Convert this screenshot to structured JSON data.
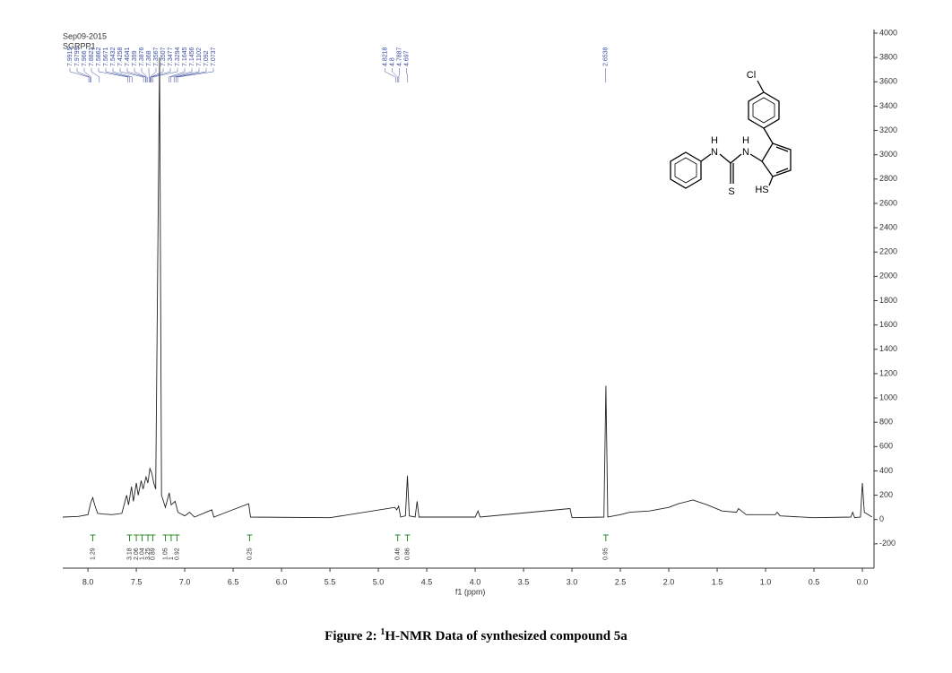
{
  "chart_data": {
    "type": "line",
    "run_date": "Sep09-2015",
    "sample_id": "SGRPP1",
    "caption_prefix": "Figure 2: ",
    "caption_sup": "1",
    "caption_rest": "H-NMR Data of synthesized compound 5a",
    "xlabel": "f1 (ppm)",
    "xlim": [
      8.26,
      -0.12
    ],
    "ylim": [
      -400,
      4000
    ],
    "xticks": [
      {
        "value": 8,
        "label": "8.0"
      },
      7.5,
      {
        "value": 7,
        "label": "7.0"
      },
      6.5,
      {
        "value": 6,
        "label": "6.0"
      },
      5.5,
      {
        "value": 5,
        "label": "5.0"
      },
      4.5,
      {
        "value": 4,
        "label": "4.0"
      },
      3.5,
      {
        "value": 3,
        "label": "3.0"
      },
      2.5,
      {
        "value": 2,
        "label": "2.0"
      },
      1.5,
      {
        "value": 1,
        "label": "1.0"
      },
      0.5,
      {
        "value": 0,
        "label": "0.0"
      }
    ],
    "yticks": [
      4000,
      3800,
      3600,
      3400,
      3200,
      3000,
      2800,
      2600,
      2400,
      2200,
      2000,
      1800,
      1600,
      1400,
      1200,
      1000,
      800,
      600,
      400,
      200,
      0,
      -200
    ],
    "color": "#222222",
    "x": [
      8.26,
      8.1,
      8.0,
      7.97,
      7.95,
      7.93,
      7.9,
      7.85,
      7.75,
      7.65,
      7.6,
      7.58,
      7.55,
      7.53,
      7.5,
      7.48,
      7.45,
      7.43,
      7.4,
      7.38,
      7.36,
      7.34,
      7.32,
      7.3,
      7.26,
      7.24,
      7.2,
      7.16,
      7.14,
      7.1,
      7.07,
      7.0,
      6.95,
      6.9,
      6.72,
      6.7,
      6.34,
      6.32,
      5.5,
      4.83,
      4.81,
      4.79,
      4.77,
      4.72,
      4.7,
      4.68,
      4.62,
      4.6,
      4.58,
      4.0,
      3.97,
      3.95,
      3.02,
      3.0,
      2.67,
      2.65,
      2.63,
      2.5,
      2.4,
      2.2,
      2.0,
      1.9,
      1.75,
      1.6,
      1.45,
      1.3,
      1.28,
      1.2,
      0.9,
      0.88,
      0.85,
      0.5,
      0.12,
      0.1,
      0.08,
      0.02,
      0.0,
      -0.02,
      -0.1
    ],
    "values": [
      20,
      25,
      40,
      140,
      180,
      120,
      50,
      45,
      40,
      50,
      200,
      120,
      270,
      150,
      300,
      200,
      320,
      250,
      350,
      300,
      420,
      380,
      300,
      250,
      3800,
      200,
      100,
      220,
      120,
      150,
      60,
      30,
      60,
      20,
      80,
      20,
      130,
      20,
      15,
      100,
      80,
      110,
      20,
      30,
      360,
      30,
      20,
      150,
      20,
      20,
      70,
      20,
      90,
      15,
      20,
      1100,
      20,
      40,
      60,
      70,
      100,
      130,
      160,
      120,
      70,
      60,
      90,
      40,
      40,
      60,
      30,
      15,
      20,
      60,
      15,
      20,
      300,
      60,
      20
    ],
    "peak_labels": [
      7.9915,
      7.9799,
      7.966,
      7.8823,
      7.5862,
      7.5671,
      7.5432,
      7.4258,
      7.4041,
      7.399,
      7.3876,
      7.368,
      7.3567,
      7.3507,
      7.3477,
      7.3294,
      7.1645,
      7.1456,
      7.1102,
      7.092,
      7.0737,
      4.8218,
      4.8,
      4.7887,
      4.697,
      2.6538
    ],
    "integrals": {
      "x": [
        7.95,
        7.57,
        7.5,
        7.44,
        7.38,
        7.33,
        7.2,
        7.14,
        7.08,
        6.33,
        4.8,
        4.7,
        2.65
      ],
      "values": [
        1.29,
        3.18,
        2.06,
        1.04,
        3.25,
        0.89,
        1.05,
        1.0,
        0.92,
        0.25,
        0.46,
        0.86,
        0.95
      ]
    }
  },
  "molecule": {
    "cl": "Cl",
    "h1": "H",
    "n1": "N",
    "h2": "H",
    "n2": "N",
    "s": "S",
    "hs": "HS"
  }
}
